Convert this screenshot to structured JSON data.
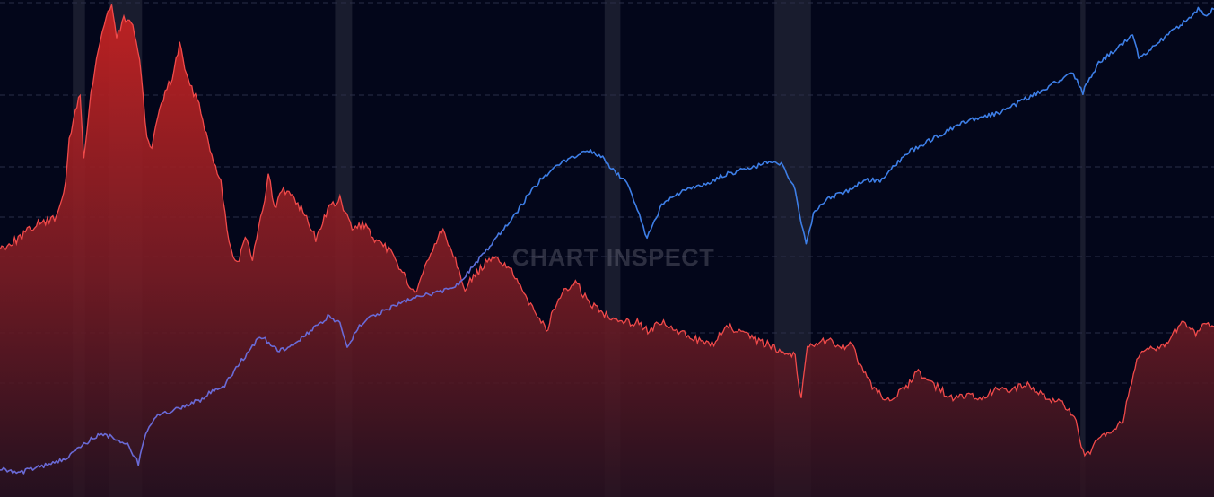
{
  "watermark": "CHART INSPECT",
  "colors": {
    "background": "#03061a",
    "grid": "#2a2e48",
    "shade_band": "#1c1f31",
    "red_line": "#f04a4a",
    "red_fill_top": "#c62222",
    "red_fill_bottom": "#2a1220",
    "blue_line_early": "#6a6ad6",
    "blue_line_late": "#3d7ee6"
  },
  "chart_data": {
    "type": "line",
    "grid": "horizontal-dashed",
    "legend": "none",
    "x_range": [
      0,
      100
    ],
    "y_range": [
      0,
      100
    ],
    "shaded_periods": [
      [
        6,
        7
      ],
      [
        9,
        11.7
      ],
      [
        27.6,
        29
      ],
      [
        49.8,
        51.1
      ],
      [
        63.8,
        66.8
      ],
      [
        89,
        89.4
      ]
    ],
    "series": [
      {
        "style": "area",
        "color": "red",
        "points": [
          [
            0,
            50
          ],
          [
            1.5,
            52
          ],
          [
            3,
            55
          ],
          [
            4.5,
            56
          ],
          [
            5.4,
            63
          ],
          [
            5.7,
            72
          ],
          [
            6.2,
            78
          ],
          [
            6.6,
            82
          ],
          [
            6.9,
            68
          ],
          [
            7.5,
            82
          ],
          [
            8.1,
            91
          ],
          [
            8.6,
            96
          ],
          [
            9.2,
            100
          ],
          [
            9.6,
            93
          ],
          [
            10.2,
            97
          ],
          [
            10.8,
            97
          ],
          [
            11.5,
            89
          ],
          [
            12.1,
            72
          ],
          [
            12.5,
            71
          ],
          [
            13,
            77
          ],
          [
            13.6,
            82
          ],
          [
            14.2,
            85
          ],
          [
            14.8,
            92
          ],
          [
            15.5,
            84
          ],
          [
            16.4,
            80
          ],
          [
            17.3,
            70
          ],
          [
            18.2,
            64
          ],
          [
            18.7,
            54
          ],
          [
            19.2,
            48
          ],
          [
            19.7,
            48
          ],
          [
            20.2,
            52
          ],
          [
            20.8,
            48
          ],
          [
            21.3,
            54
          ],
          [
            21.8,
            60
          ],
          [
            22.1,
            66
          ],
          [
            22.6,
            58
          ],
          [
            23.2,
            62
          ],
          [
            24.1,
            61
          ],
          [
            25.1,
            57
          ],
          [
            26,
            52
          ],
          [
            27,
            58
          ],
          [
            28,
            60
          ],
          [
            29,
            54
          ],
          [
            30,
            55
          ],
          [
            31,
            51
          ],
          [
            32,
            50
          ],
          [
            33,
            46
          ],
          [
            34,
            41
          ],
          [
            34.5,
            42
          ],
          [
            35,
            46
          ],
          [
            35.8,
            51
          ],
          [
            36.5,
            54
          ],
          [
            37.5,
            48
          ],
          [
            38.3,
            42
          ],
          [
            39,
            44
          ],
          [
            40,
            47
          ],
          [
            41,
            48
          ],
          [
            42,
            46
          ],
          [
            43,
            41
          ],
          [
            44,
            38
          ],
          [
            45,
            33
          ],
          [
            46,
            40
          ],
          [
            47.4,
            43
          ],
          [
            48.5,
            39
          ],
          [
            49.5,
            37
          ],
          [
            50.5,
            36
          ],
          [
            51.5,
            35
          ],
          [
            52.5,
            35
          ],
          [
            53.5,
            33
          ],
          [
            54.5,
            35
          ],
          [
            55.6,
            33
          ],
          [
            57,
            32
          ],
          [
            58.5,
            30
          ],
          [
            60,
            34
          ],
          [
            61.5,
            32
          ],
          [
            62.5,
            31
          ],
          [
            63.5,
            30
          ],
          [
            64.5,
            29
          ],
          [
            65.5,
            28
          ],
          [
            66,
            19
          ],
          [
            66.5,
            30
          ],
          [
            67.5,
            31
          ],
          [
            68.4,
            31
          ],
          [
            69.3,
            30
          ],
          [
            70.3,
            30
          ],
          [
            71,
            25
          ],
          [
            72,
            21
          ],
          [
            73.3,
            19
          ],
          [
            74.5,
            21
          ],
          [
            75.5,
            25
          ],
          [
            76.5,
            23
          ],
          [
            77.5,
            21
          ],
          [
            78.5,
            19
          ],
          [
            79.5,
            20
          ],
          [
            81,
            19
          ],
          [
            82,
            21
          ],
          [
            83,
            21
          ],
          [
            84.5,
            22
          ],
          [
            86,
            20
          ],
          [
            87.5,
            18
          ],
          [
            88.5,
            16
          ],
          [
            89.2,
            8
          ],
          [
            89.8,
            8
          ],
          [
            90.5,
            11
          ],
          [
            91.5,
            12
          ],
          [
            92.5,
            15
          ],
          [
            93.5,
            26
          ],
          [
            94.5,
            30
          ],
          [
            95.5,
            29
          ],
          [
            96.5,
            32
          ],
          [
            97.5,
            35
          ],
          [
            98.5,
            32
          ],
          [
            99.2,
            35
          ],
          [
            100,
            34
          ]
        ]
      },
      {
        "style": "line",
        "color": "blue",
        "points": [
          [
            0,
            5
          ],
          [
            1.5,
            4
          ],
          [
            3,
            5
          ],
          [
            4.5,
            6
          ],
          [
            5.5,
            7
          ],
          [
            6.5,
            9
          ],
          [
            7.5,
            11
          ],
          [
            8.5,
            12
          ],
          [
            9.5,
            11
          ],
          [
            10.5,
            10
          ],
          [
            11.4,
            6
          ],
          [
            12,
            12
          ],
          [
            13,
            16
          ],
          [
            14.5,
            17
          ],
          [
            15.5,
            18
          ],
          [
            16.5,
            19
          ],
          [
            17.5,
            21
          ],
          [
            18.5,
            22
          ],
          [
            19.3,
            25
          ],
          [
            20.2,
            28
          ],
          [
            21.1,
            31
          ],
          [
            21.7,
            32
          ],
          [
            22.3,
            30
          ],
          [
            23,
            29
          ],
          [
            24,
            30
          ],
          [
            25,
            32
          ],
          [
            26,
            34
          ],
          [
            27,
            36
          ],
          [
            28,
            35
          ],
          [
            28.6,
            30
          ],
          [
            29.6,
            34
          ],
          [
            30.5,
            36
          ],
          [
            31.5,
            37
          ],
          [
            33,
            39
          ],
          [
            34.5,
            40
          ],
          [
            36,
            41
          ],
          [
            37.5,
            42
          ],
          [
            38.5,
            45
          ],
          [
            39.5,
            48
          ],
          [
            40.5,
            51
          ],
          [
            41.5,
            54
          ],
          [
            42.5,
            57
          ],
          [
            43.5,
            61
          ],
          [
            44.5,
            64
          ],
          [
            45.5,
            66
          ],
          [
            46.5,
            68
          ],
          [
            47.5,
            69
          ],
          [
            48.5,
            70
          ],
          [
            49.5,
            69
          ],
          [
            50.5,
            66
          ],
          [
            51.5,
            64
          ],
          [
            52.5,
            58
          ],
          [
            53.3,
            52
          ],
          [
            54.5,
            59
          ],
          [
            55.5,
            61
          ],
          [
            56.5,
            62
          ],
          [
            58,
            63
          ],
          [
            59.5,
            65
          ],
          [
            61,
            66
          ],
          [
            62.5,
            67
          ],
          [
            63.5,
            68
          ],
          [
            64.5,
            67
          ],
          [
            65.5,
            62
          ],
          [
            66,
            55
          ],
          [
            66.4,
            51
          ],
          [
            67,
            57
          ],
          [
            68,
            60
          ],
          [
            69,
            61
          ],
          [
            70,
            62
          ],
          [
            71.3,
            64
          ],
          [
            72.5,
            64
          ],
          [
            73.7,
            67
          ],
          [
            75,
            70
          ],
          [
            76.5,
            72
          ],
          [
            78,
            74
          ],
          [
            79.5,
            76
          ],
          [
            81,
            77
          ],
          [
            82.5,
            78
          ],
          [
            84,
            80
          ],
          [
            85.5,
            82
          ],
          [
            87,
            84
          ],
          [
            88.4,
            86
          ],
          [
            89.2,
            82
          ],
          [
            89.6,
            84
          ],
          [
            90.5,
            88
          ],
          [
            91.5,
            90
          ],
          [
            92.5,
            92
          ],
          [
            93.3,
            94
          ],
          [
            93.8,
            89
          ],
          [
            94.8,
            91
          ],
          [
            95.8,
            93
          ],
          [
            96.8,
            95
          ],
          [
            97.8,
            97
          ],
          [
            98.7,
            99
          ],
          [
            99.4,
            98
          ],
          [
            100,
            99
          ]
        ]
      }
    ]
  }
}
